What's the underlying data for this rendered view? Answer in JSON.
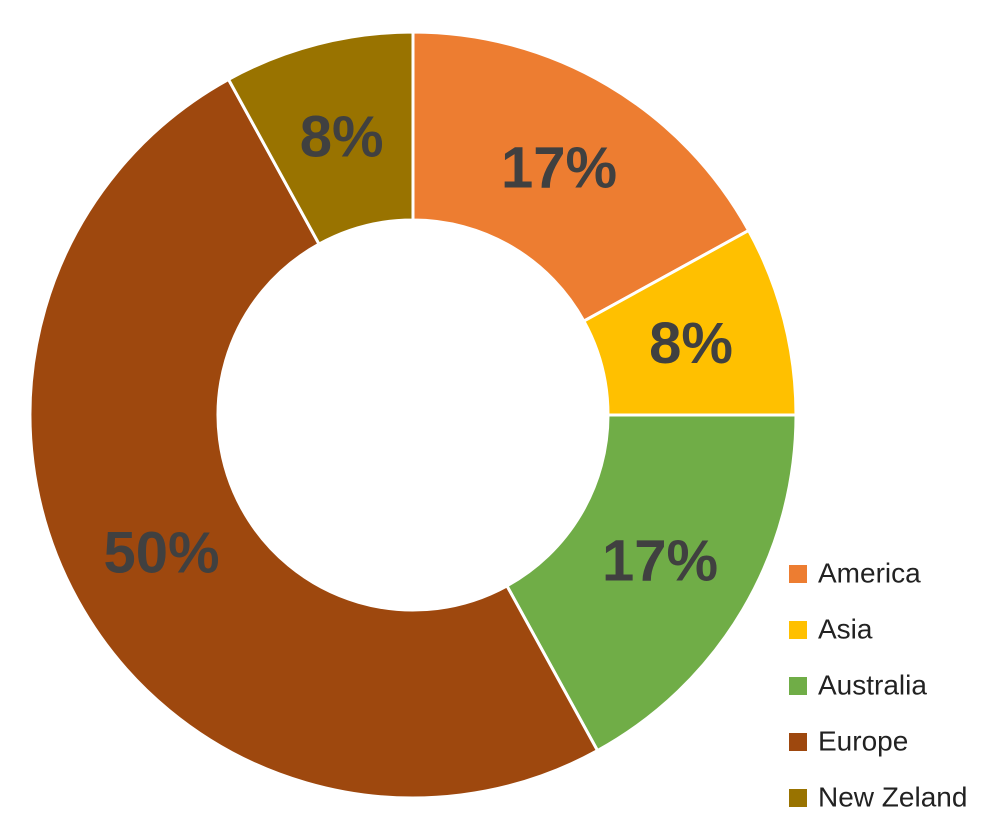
{
  "chart_data": {
    "type": "donut",
    "categories": [
      "America",
      "Asia",
      "Australia",
      "Europe",
      "New Zeland"
    ],
    "values": [
      17,
      8,
      17,
      50,
      8
    ],
    "value_labels": [
      "17%",
      "8%",
      "17%",
      "50%",
      "8%"
    ],
    "colors": [
      "#ED7D31",
      "#FFC000",
      "#70AD47",
      "#9E480E",
      "#997300"
    ],
    "legend": "bottom-right"
  }
}
